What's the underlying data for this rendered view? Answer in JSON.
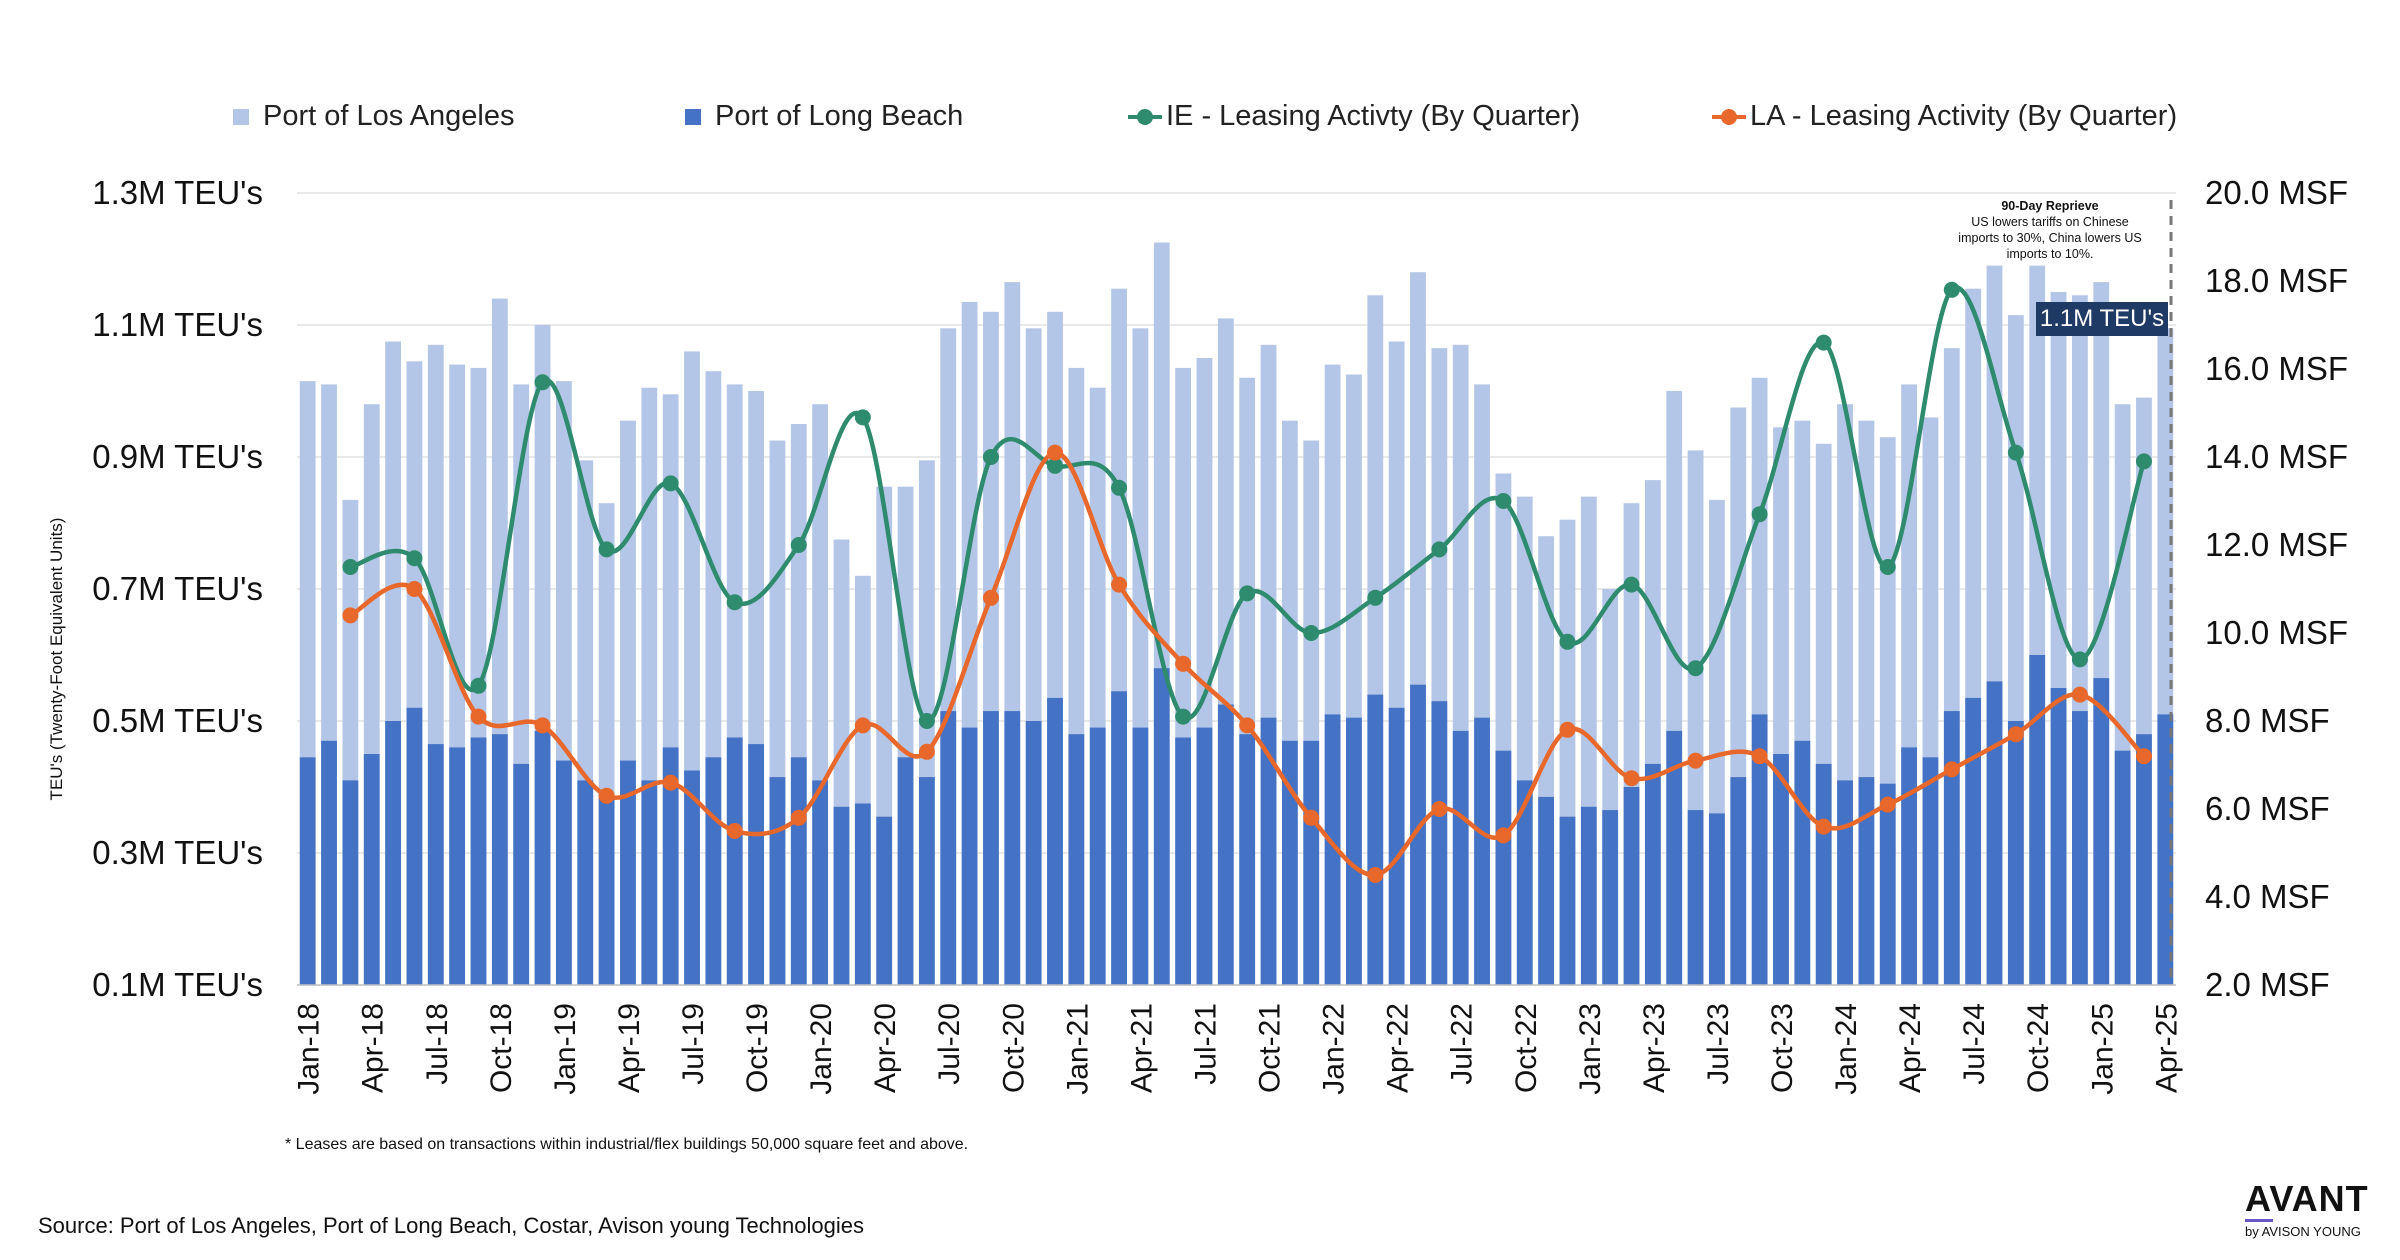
{
  "legend": {
    "port_la": "Port of Los Angeles",
    "port_lb": "Port of Long Beach",
    "ie_leasing": "IE - Leasing Activty (By Quarter)",
    "la_leasing": "LA - Leasing Activity (By Quarter)"
  },
  "colors": {
    "port_la": "#b4c6e7",
    "port_lb": "#4472c4",
    "ie_leasing": "#2e8b6e",
    "la_leasing": "#e8672a",
    "badge": "#1f3a64"
  },
  "annotation": {
    "title": "90-Day Reprieve",
    "line1": "US lowers tariffs on Chinese",
    "line2": "imports to 30%, China lowers US",
    "line3": "imports to 10%.",
    "badge": "1.1M TEU's"
  },
  "footnote": "* Leases are based on transactions within industrial/flex buildings 50,000 square feet and above.",
  "source": "Source: Port of Los Angeles, Port of Long Beach, Costar, Avison young Technologies",
  "logo": {
    "main": "AVANT",
    "sub": "by AVISON YOUNG"
  },
  "chart_data": {
    "type": "bar",
    "title": "",
    "ylabel": "TEU's (Twenty-Foot Equivalent Units)",
    "y2label": "",
    "ylim": [
      0.1,
      1.3
    ],
    "y2lim": [
      2.0,
      20.0
    ],
    "yticks": [
      1.3,
      1.1,
      0.9,
      0.7,
      0.5,
      0.3,
      0.1
    ],
    "ytick_labels": [
      "1.3M TEU's",
      "1.1M TEU's",
      "0.9M TEU's",
      "0.7M TEU's",
      "0.5M TEU's",
      "0.3M TEU's",
      "0.1M TEU's"
    ],
    "y2ticks": [
      20,
      18,
      16,
      14,
      12,
      10,
      8,
      6,
      4,
      2
    ],
    "y2tick_labels": [
      "20.0 MSF",
      "18.0 MSF",
      "16.0 MSF",
      "14.0 MSF",
      "12.0 MSF",
      "10.0 MSF",
      "8.0 MSF",
      "6.0 MSF",
      "4.0 MSF",
      "2.0 MSF"
    ],
    "xtick_labels": [
      "Jan-18",
      "Apr-18",
      "Jul-18",
      "Oct-18",
      "Jan-19",
      "Apr-19",
      "Jul-19",
      "Oct-19",
      "Jan-20",
      "Apr-20",
      "Jul-20",
      "Oct-20",
      "Jan-21",
      "Apr-21",
      "Jul-21",
      "Oct-21",
      "Jan-22",
      "Apr-22",
      "Jul-22",
      "Oct-22",
      "Jan-23",
      "Apr-23",
      "Jul-23",
      "Oct-23",
      "Jan-24",
      "Apr-24",
      "Jul-24",
      "Oct-24",
      "Jan-25",
      "Apr-25"
    ],
    "series": [
      {
        "name": "Port of Long Beach",
        "kind": "bar",
        "axis": "left",
        "values": [
          0.445,
          0.47,
          0.41,
          0.45,
          0.5,
          0.52,
          0.465,
          0.46,
          0.475,
          0.48,
          0.435,
          0.485,
          0.44,
          0.41,
          0.39,
          0.44,
          0.41,
          0.46,
          0.425,
          0.445,
          0.475,
          0.465,
          0.415,
          0.445,
          0.41,
          0.37,
          0.375,
          0.355,
          0.445,
          0.415,
          0.515,
          0.49,
          0.515,
          0.515,
          0.5,
          0.535,
          0.48,
          0.49,
          0.545,
          0.49,
          0.58,
          0.475,
          0.49,
          0.525,
          0.48,
          0.505,
          0.47,
          0.47,
          0.51,
          0.505,
          0.54,
          0.52,
          0.555,
          0.53,
          0.485,
          0.505,
          0.455,
          0.41,
          0.385,
          0.355,
          0.37,
          0.365,
          0.4,
          0.435,
          0.485,
          0.365,
          0.36,
          0.415,
          0.51,
          0.45,
          0.47,
          0.435,
          0.41,
          0.415,
          0.405,
          0.46,
          0.445,
          0.515,
          0.535,
          0.56,
          0.5,
          0.6,
          0.55,
          0.515,
          0.565,
          0.455,
          0.48,
          0.51
        ]
      },
      {
        "name": "Port of Los Angeles",
        "kind": "bar",
        "axis": "left",
        "values": [
          1.015,
          1.01,
          0.835,
          0.98,
          1.075,
          1.045,
          1.07,
          1.04,
          1.035,
          1.14,
          1.01,
          1.1,
          1.015,
          0.895,
          0.83,
          0.955,
          1.005,
          0.995,
          1.06,
          1.03,
          1.01,
          1.0,
          0.925,
          0.95,
          0.98,
          0.775,
          0.72,
          0.855,
          0.855,
          0.895,
          1.095,
          1.135,
          1.12,
          1.165,
          1.095,
          1.12,
          1.035,
          1.005,
          1.155,
          1.095,
          1.225,
          1.035,
          1.05,
          1.11,
          1.02,
          1.07,
          0.955,
          0.925,
          1.04,
          1.025,
          1.145,
          1.075,
          1.18,
          1.065,
          1.07,
          1.01,
          0.875,
          0.84,
          0.78,
          0.805,
          0.84,
          0.7,
          0.83,
          0.865,
          1.0,
          0.91,
          0.835,
          0.975,
          1.02,
          0.945,
          0.955,
          0.92,
          0.98,
          0.955,
          0.93,
          1.01,
          0.96,
          1.065,
          1.155,
          1.19,
          1.115,
          1.19,
          1.15,
          1.145,
          1.165,
          0.98,
          0.99,
          1.095
        ]
      },
      {
        "name": "IE - Leasing Activty (By Quarter)",
        "kind": "line",
        "axis": "right",
        "points": [
          [
            2.5,
            11.5
          ],
          [
            5.5,
            11.7
          ],
          [
            8.5,
            8.8
          ],
          [
            11.5,
            15.7
          ],
          [
            14.5,
            11.9
          ],
          [
            17.5,
            13.4
          ],
          [
            20.5,
            10.7
          ],
          [
            23.5,
            12.0
          ],
          [
            26.5,
            14.9
          ],
          [
            29.5,
            8.0
          ],
          [
            32.5,
            14.0
          ],
          [
            35.5,
            13.8
          ],
          [
            38.5,
            13.3
          ],
          [
            41.5,
            8.1
          ],
          [
            44.5,
            10.9
          ],
          [
            47.5,
            10.0
          ],
          [
            50.5,
            10.8
          ],
          [
            53.5,
            11.9
          ],
          [
            56.5,
            13.0
          ],
          [
            59.5,
            9.8
          ],
          [
            62.5,
            11.1
          ],
          [
            65.5,
            9.2
          ],
          [
            68.5,
            12.7
          ],
          [
            71.5,
            16.6
          ],
          [
            74.5,
            11.5
          ],
          [
            77.5,
            17.8
          ],
          [
            80.5,
            14.1
          ],
          [
            83.5,
            9.4
          ],
          [
            86.5,
            13.9
          ]
        ]
      },
      {
        "name": "LA - Leasing Activity (By Quarter)",
        "kind": "line",
        "axis": "right",
        "points": [
          [
            2.5,
            10.4
          ],
          [
            5.5,
            11.0
          ],
          [
            8.5,
            8.1
          ],
          [
            11.5,
            7.9
          ],
          [
            14.5,
            6.3
          ],
          [
            17.5,
            6.6
          ],
          [
            20.5,
            5.5
          ],
          [
            23.5,
            5.8
          ],
          [
            26.5,
            7.9
          ],
          [
            29.5,
            7.3
          ],
          [
            32.5,
            10.8
          ],
          [
            35.5,
            14.1
          ],
          [
            38.5,
            11.1
          ],
          [
            41.5,
            9.3
          ],
          [
            44.5,
            7.9
          ],
          [
            47.5,
            5.8
          ],
          [
            50.5,
            4.5
          ],
          [
            53.5,
            6.0
          ],
          [
            56.5,
            5.4
          ],
          [
            59.5,
            7.8
          ],
          [
            62.5,
            6.7
          ],
          [
            65.5,
            7.1
          ],
          [
            68.5,
            7.2
          ],
          [
            71.5,
            5.6
          ],
          [
            74.5,
            6.1
          ],
          [
            77.5,
            6.9
          ],
          [
            80.5,
            7.7
          ],
          [
            83.5,
            8.6
          ],
          [
            86.5,
            7.2
          ]
        ]
      }
    ]
  }
}
